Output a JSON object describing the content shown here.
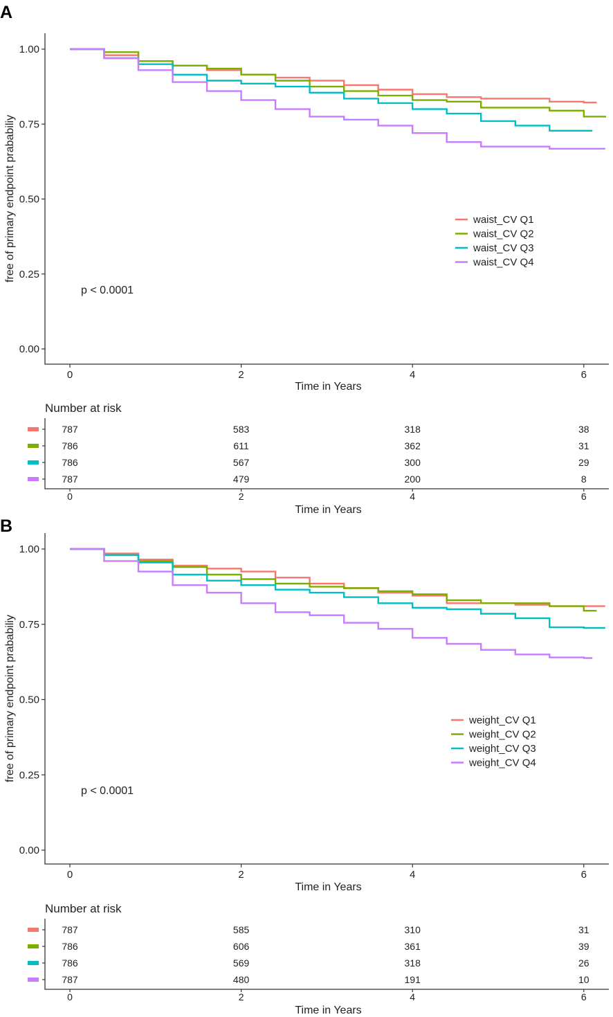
{
  "chart_data": [
    {
      "type": "line",
      "panel_label": "A",
      "xlabel": "Time in Years",
      "ylabel": "free of primary endpoint prababiliy",
      "xlim": [
        -0.3,
        6.3
      ],
      "ylim": [
        -0.05,
        1.05
      ],
      "x_ticks": [
        0,
        2,
        4,
        6
      ],
      "y_ticks": [
        "0.00",
        "0.25",
        "0.50",
        "0.75",
        "1.00"
      ],
      "y_tick_values": [
        0,
        0.25,
        0.5,
        0.75,
        1.0
      ],
      "annotation": "p < 0.0001",
      "legend_position": "right-middle",
      "series": [
        {
          "name": "waist_CV Q1",
          "color": "#F8766D",
          "x": [
            0,
            0.4,
            0.8,
            1.2,
            1.6,
            2.0,
            2.4,
            2.8,
            3.2,
            3.6,
            4.0,
            4.4,
            4.8,
            5.2,
            5.6,
            6.0,
            6.15
          ],
          "y": [
            1.0,
            0.98,
            0.96,
            0.945,
            0.93,
            0.915,
            0.905,
            0.895,
            0.88,
            0.865,
            0.85,
            0.84,
            0.835,
            0.835,
            0.825,
            0.822,
            0.822
          ]
        },
        {
          "name": "waist_CV Q2",
          "color": "#7CAE00",
          "x": [
            0,
            0.4,
            0.8,
            1.2,
            1.6,
            2.0,
            2.4,
            2.8,
            3.2,
            3.6,
            4.0,
            4.4,
            4.8,
            5.2,
            5.6,
            6.0,
            6.25
          ],
          "y": [
            1.0,
            0.99,
            0.96,
            0.945,
            0.935,
            0.915,
            0.895,
            0.875,
            0.86,
            0.845,
            0.83,
            0.825,
            0.805,
            0.805,
            0.795,
            0.775,
            0.772
          ]
        },
        {
          "name": "waist_CV Q3",
          "color": "#00BFC4",
          "x": [
            0,
            0.4,
            0.8,
            1.2,
            1.6,
            2.0,
            2.4,
            2.8,
            3.2,
            3.6,
            4.0,
            4.4,
            4.8,
            5.2,
            5.6,
            6.0,
            6.1
          ],
          "y": [
            1.0,
            0.97,
            0.95,
            0.915,
            0.895,
            0.885,
            0.875,
            0.855,
            0.835,
            0.82,
            0.8,
            0.785,
            0.76,
            0.745,
            0.728,
            0.728,
            0.728
          ]
        },
        {
          "name": "waist_CV Q4",
          "color": "#C77CFF",
          "x": [
            0,
            0.4,
            0.8,
            1.2,
            1.6,
            2.0,
            2.4,
            2.8,
            3.2,
            3.6,
            4.0,
            4.4,
            4.8,
            5.2,
            5.6,
            6.0,
            6.25
          ],
          "y": [
            1.0,
            0.97,
            0.93,
            0.89,
            0.86,
            0.83,
            0.8,
            0.775,
            0.765,
            0.745,
            0.72,
            0.69,
            0.675,
            0.675,
            0.668,
            0.668,
            0.668
          ]
        }
      ],
      "risk_table": {
        "title": "Number at risk",
        "xlabel": "Time in Years",
        "rows": [
          {
            "color": "#F8766D",
            "values": [
              "787",
              "583",
              "318",
              "38"
            ]
          },
          {
            "color": "#7CAE00",
            "values": [
              "786",
              "611",
              "362",
              "31"
            ]
          },
          {
            "color": "#00BFC4",
            "values": [
              "786",
              "567",
              "300",
              "29"
            ]
          },
          {
            "color": "#C77CFF",
            "values": [
              "787",
              "479",
              "200",
              "8"
            ]
          }
        ]
      }
    },
    {
      "type": "line",
      "panel_label": "B",
      "xlabel": "Time in Years",
      "ylabel": "free of primary endpoint prababiliy",
      "xlim": [
        -0.3,
        6.3
      ],
      "ylim": [
        -0.05,
        1.05
      ],
      "x_ticks": [
        0,
        2,
        4,
        6
      ],
      "y_ticks": [
        "0.00",
        "0.25",
        "0.50",
        "0.75",
        "1.00"
      ],
      "y_tick_values": [
        0,
        0.25,
        0.5,
        0.75,
        1.0
      ],
      "annotation": "p < 0.0001",
      "legend_position": "right-middle",
      "series": [
        {
          "name": "weight_CV Q1",
          "color": "#F8766D",
          "x": [
            0,
            0.4,
            0.8,
            1.2,
            1.6,
            2.0,
            2.4,
            2.8,
            3.2,
            3.6,
            4.0,
            4.4,
            4.8,
            5.2,
            5.6,
            6.0,
            6.25
          ],
          "y": [
            1.0,
            0.985,
            0.965,
            0.945,
            0.935,
            0.925,
            0.905,
            0.885,
            0.87,
            0.855,
            0.845,
            0.82,
            0.82,
            0.815,
            0.81,
            0.81,
            0.81
          ]
        },
        {
          "name": "weight_CV Q2",
          "color": "#7CAE00",
          "x": [
            0,
            0.4,
            0.8,
            1.2,
            1.6,
            2.0,
            2.4,
            2.8,
            3.2,
            3.6,
            4.0,
            4.4,
            4.8,
            5.2,
            5.6,
            6.0,
            6.15
          ],
          "y": [
            1.0,
            0.98,
            0.96,
            0.94,
            0.915,
            0.9,
            0.885,
            0.875,
            0.87,
            0.86,
            0.85,
            0.83,
            0.82,
            0.82,
            0.81,
            0.795,
            0.795
          ]
        },
        {
          "name": "weight_CV Q3",
          "color": "#00BFC4",
          "x": [
            0,
            0.4,
            0.8,
            1.2,
            1.6,
            2.0,
            2.4,
            2.8,
            3.2,
            3.6,
            4.0,
            4.4,
            4.8,
            5.2,
            5.6,
            6.0,
            6.25
          ],
          "y": [
            1.0,
            0.98,
            0.955,
            0.915,
            0.895,
            0.88,
            0.865,
            0.855,
            0.84,
            0.82,
            0.805,
            0.8,
            0.785,
            0.77,
            0.74,
            0.738,
            0.738
          ]
        },
        {
          "name": "weight_CV Q4",
          "color": "#C77CFF",
          "x": [
            0,
            0.4,
            0.8,
            1.2,
            1.6,
            2.0,
            2.4,
            2.8,
            3.2,
            3.6,
            4.0,
            4.4,
            4.8,
            5.2,
            5.6,
            6.0,
            6.1
          ],
          "y": [
            1.0,
            0.96,
            0.925,
            0.88,
            0.855,
            0.82,
            0.79,
            0.78,
            0.755,
            0.735,
            0.705,
            0.685,
            0.665,
            0.65,
            0.64,
            0.638,
            0.638
          ]
        }
      ],
      "risk_table": {
        "title": "Number at risk",
        "xlabel": "Time in Years",
        "rows": [
          {
            "color": "#F8766D",
            "values": [
              "787",
              "585",
              "310",
              "31"
            ]
          },
          {
            "color": "#7CAE00",
            "values": [
              "786",
              "606",
              "361",
              "39"
            ]
          },
          {
            "color": "#00BFC4",
            "values": [
              "786",
              "569",
              "318",
              "26"
            ]
          },
          {
            "color": "#C77CFF",
            "values": [
              "787",
              "480",
              "191",
              "10"
            ]
          }
        ]
      }
    }
  ]
}
